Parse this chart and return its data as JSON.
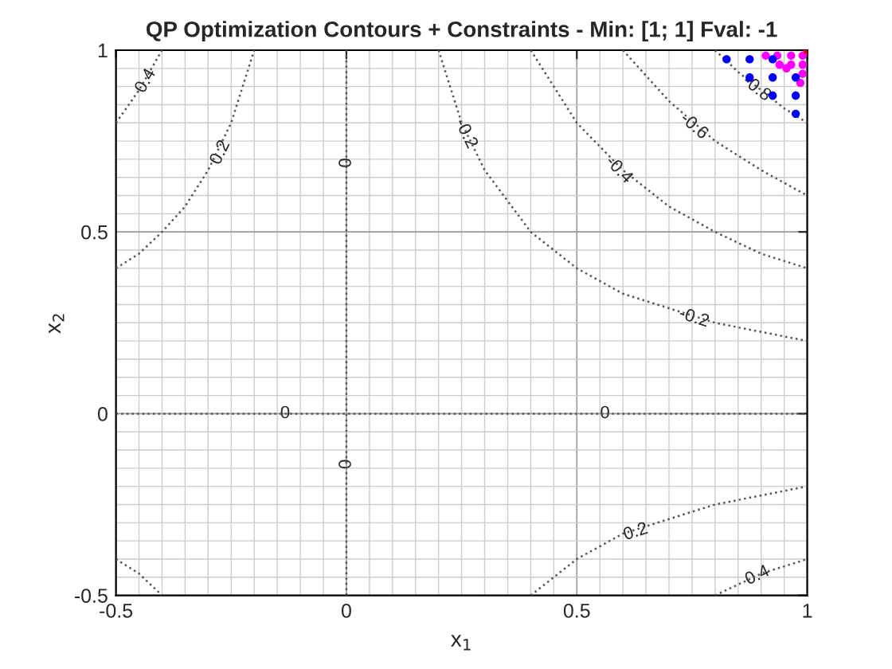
{
  "chart_data": {
    "type": "line",
    "title": "QP Optimization Contours + Constraints - Min: [1; 1] Fval: -1",
    "xlabel": "x$_{1}$",
    "ylabel": "x$_{2}$",
    "xlim": [
      -0.5,
      1
    ],
    "ylim": [
      -0.5,
      1
    ],
    "xticks": [
      -0.5,
      0,
      0.5,
      1
    ],
    "yticks": [
      -0.5,
      0,
      0.5,
      1
    ],
    "grid": true,
    "series": [
      {
        "color": "#555555",
        "line_style": "dotted",
        "marker": "none",
        "x": [
          0,
          0
        ],
        "values": [
          -0.5,
          1
        ]
      },
      {
        "color": "#555555",
        "line_style": "dotted",
        "marker": "none",
        "x": [
          -0.5,
          1
        ],
        "values": [
          0,
          0
        ]
      },
      {
        "color": "#555555",
        "line_style": "dotted",
        "marker": "none",
        "x": [
          0.2,
          0.25,
          0.3,
          0.4,
          0.5,
          0.6,
          0.8,
          1.0
        ],
        "values": [
          1,
          0.8,
          0.67,
          0.5,
          0.4,
          0.33,
          0.25,
          0.2
        ]
      },
      {
        "color": "#555555",
        "line_style": "dotted",
        "marker": "none",
        "x": [
          0.4,
          0.5,
          0.6,
          0.7,
          0.8,
          0.9,
          1.0
        ],
        "values": [
          1,
          0.8,
          0.67,
          0.57,
          0.5,
          0.44,
          0.4
        ]
      },
      {
        "color": "#555555",
        "line_style": "dotted",
        "marker": "none",
        "x": [
          0.6,
          0.7,
          0.8,
          0.9,
          1.0
        ],
        "values": [
          1,
          0.86,
          0.75,
          0.67,
          0.6
        ]
      },
      {
        "color": "#555555",
        "line_style": "dotted",
        "marker": "none",
        "x": [
          0.8,
          0.85,
          0.9,
          0.95,
          1.0
        ],
        "values": [
          1,
          0.94,
          0.89,
          0.84,
          0.8
        ]
      },
      {
        "color": "#555555",
        "line_style": "dotted",
        "marker": "none",
        "x": [
          -0.5,
          -0.45,
          -0.4,
          -0.35,
          -0.3,
          -0.25,
          -0.2
        ],
        "values": [
          0.4,
          0.44,
          0.5,
          0.57,
          0.67,
          0.8,
          1
        ]
      },
      {
        "color": "#555555",
        "line_style": "dotted",
        "marker": "none",
        "x": [
          -0.5,
          -0.45,
          -0.4
        ],
        "values": [
          0.8,
          0.89,
          1
        ]
      },
      {
        "color": "#555555",
        "line_style": "dotted",
        "marker": "none",
        "x": [
          0.4,
          0.5,
          0.6,
          0.7,
          0.8,
          1.0
        ],
        "values": [
          -0.5,
          -0.4,
          -0.33,
          -0.29,
          -0.25,
          -0.2
        ]
      },
      {
        "color": "#555555",
        "line_style": "dotted",
        "marker": "none",
        "x": [
          0.8,
          0.9,
          1.0
        ],
        "values": [
          -0.5,
          -0.44,
          -0.4
        ]
      },
      {
        "color": "#555555",
        "line_style": "dotted",
        "marker": "none",
        "x": [
          -0.5,
          -0.45,
          -0.4
        ],
        "values": [
          -0.4,
          -0.44,
          -0.5
        ]
      },
      {
        "type": "scatter",
        "color": "#ff00ff",
        "marker": "circle",
        "x": [
          0.91,
          0.935,
          0.94,
          0.965,
          0.965,
          0.99,
          0.99,
          0.99,
          0.985,
          0.955
        ],
        "values": [
          0.985,
          0.985,
          0.96,
          0.985,
          0.96,
          0.985,
          0.96,
          0.935,
          0.91,
          0.95
        ]
      },
      {
        "type": "scatter",
        "color": "#0000ff",
        "marker": "circle",
        "x": [
          0.825,
          0.875,
          0.925,
          0.875,
          0.925,
          0.975,
          0.925,
          0.975,
          0.975
        ],
        "values": [
          0.975,
          0.975,
          0.975,
          0.925,
          0.925,
          0.925,
          0.875,
          0.875,
          0.825
        ]
      },
      {
        "type": "scatter",
        "color": "#ff0000",
        "marker": "circle",
        "x": [
          1
        ],
        "values": [
          1
        ]
      }
    ],
    "annotations": [
      {
        "text": "0.4",
        "x": -0.435,
        "y": 0.915
      },
      {
        "text": "0.2",
        "x": -0.273,
        "y": 0.718
      },
      {
        "text": "0",
        "x": 0,
        "y": 0.69
      },
      {
        "text": "-0.2",
        "x": 0.259,
        "y": 0.77
      },
      {
        "text": "-0.4",
        "x": 0.591,
        "y": 0.67
      },
      {
        "text": "-0.6",
        "x": 0.754,
        "y": 0.79
      },
      {
        "text": "-0.8",
        "x": 0.89,
        "y": 0.894
      },
      {
        "text": "-0.2",
        "x": 0.754,
        "y": 0.263
      },
      {
        "text": "0",
        "x": -0.133,
        "y": 0
      },
      {
        "text": "0",
        "x": 0.561,
        "y": 0
      },
      {
        "text": "0",
        "x": 0,
        "y": -0.139
      },
      {
        "text": "0.2",
        "x": 0.628,
        "y": -0.326
      },
      {
        "text": "0.4",
        "x": 0.892,
        "y": -0.446
      }
    ]
  }
}
